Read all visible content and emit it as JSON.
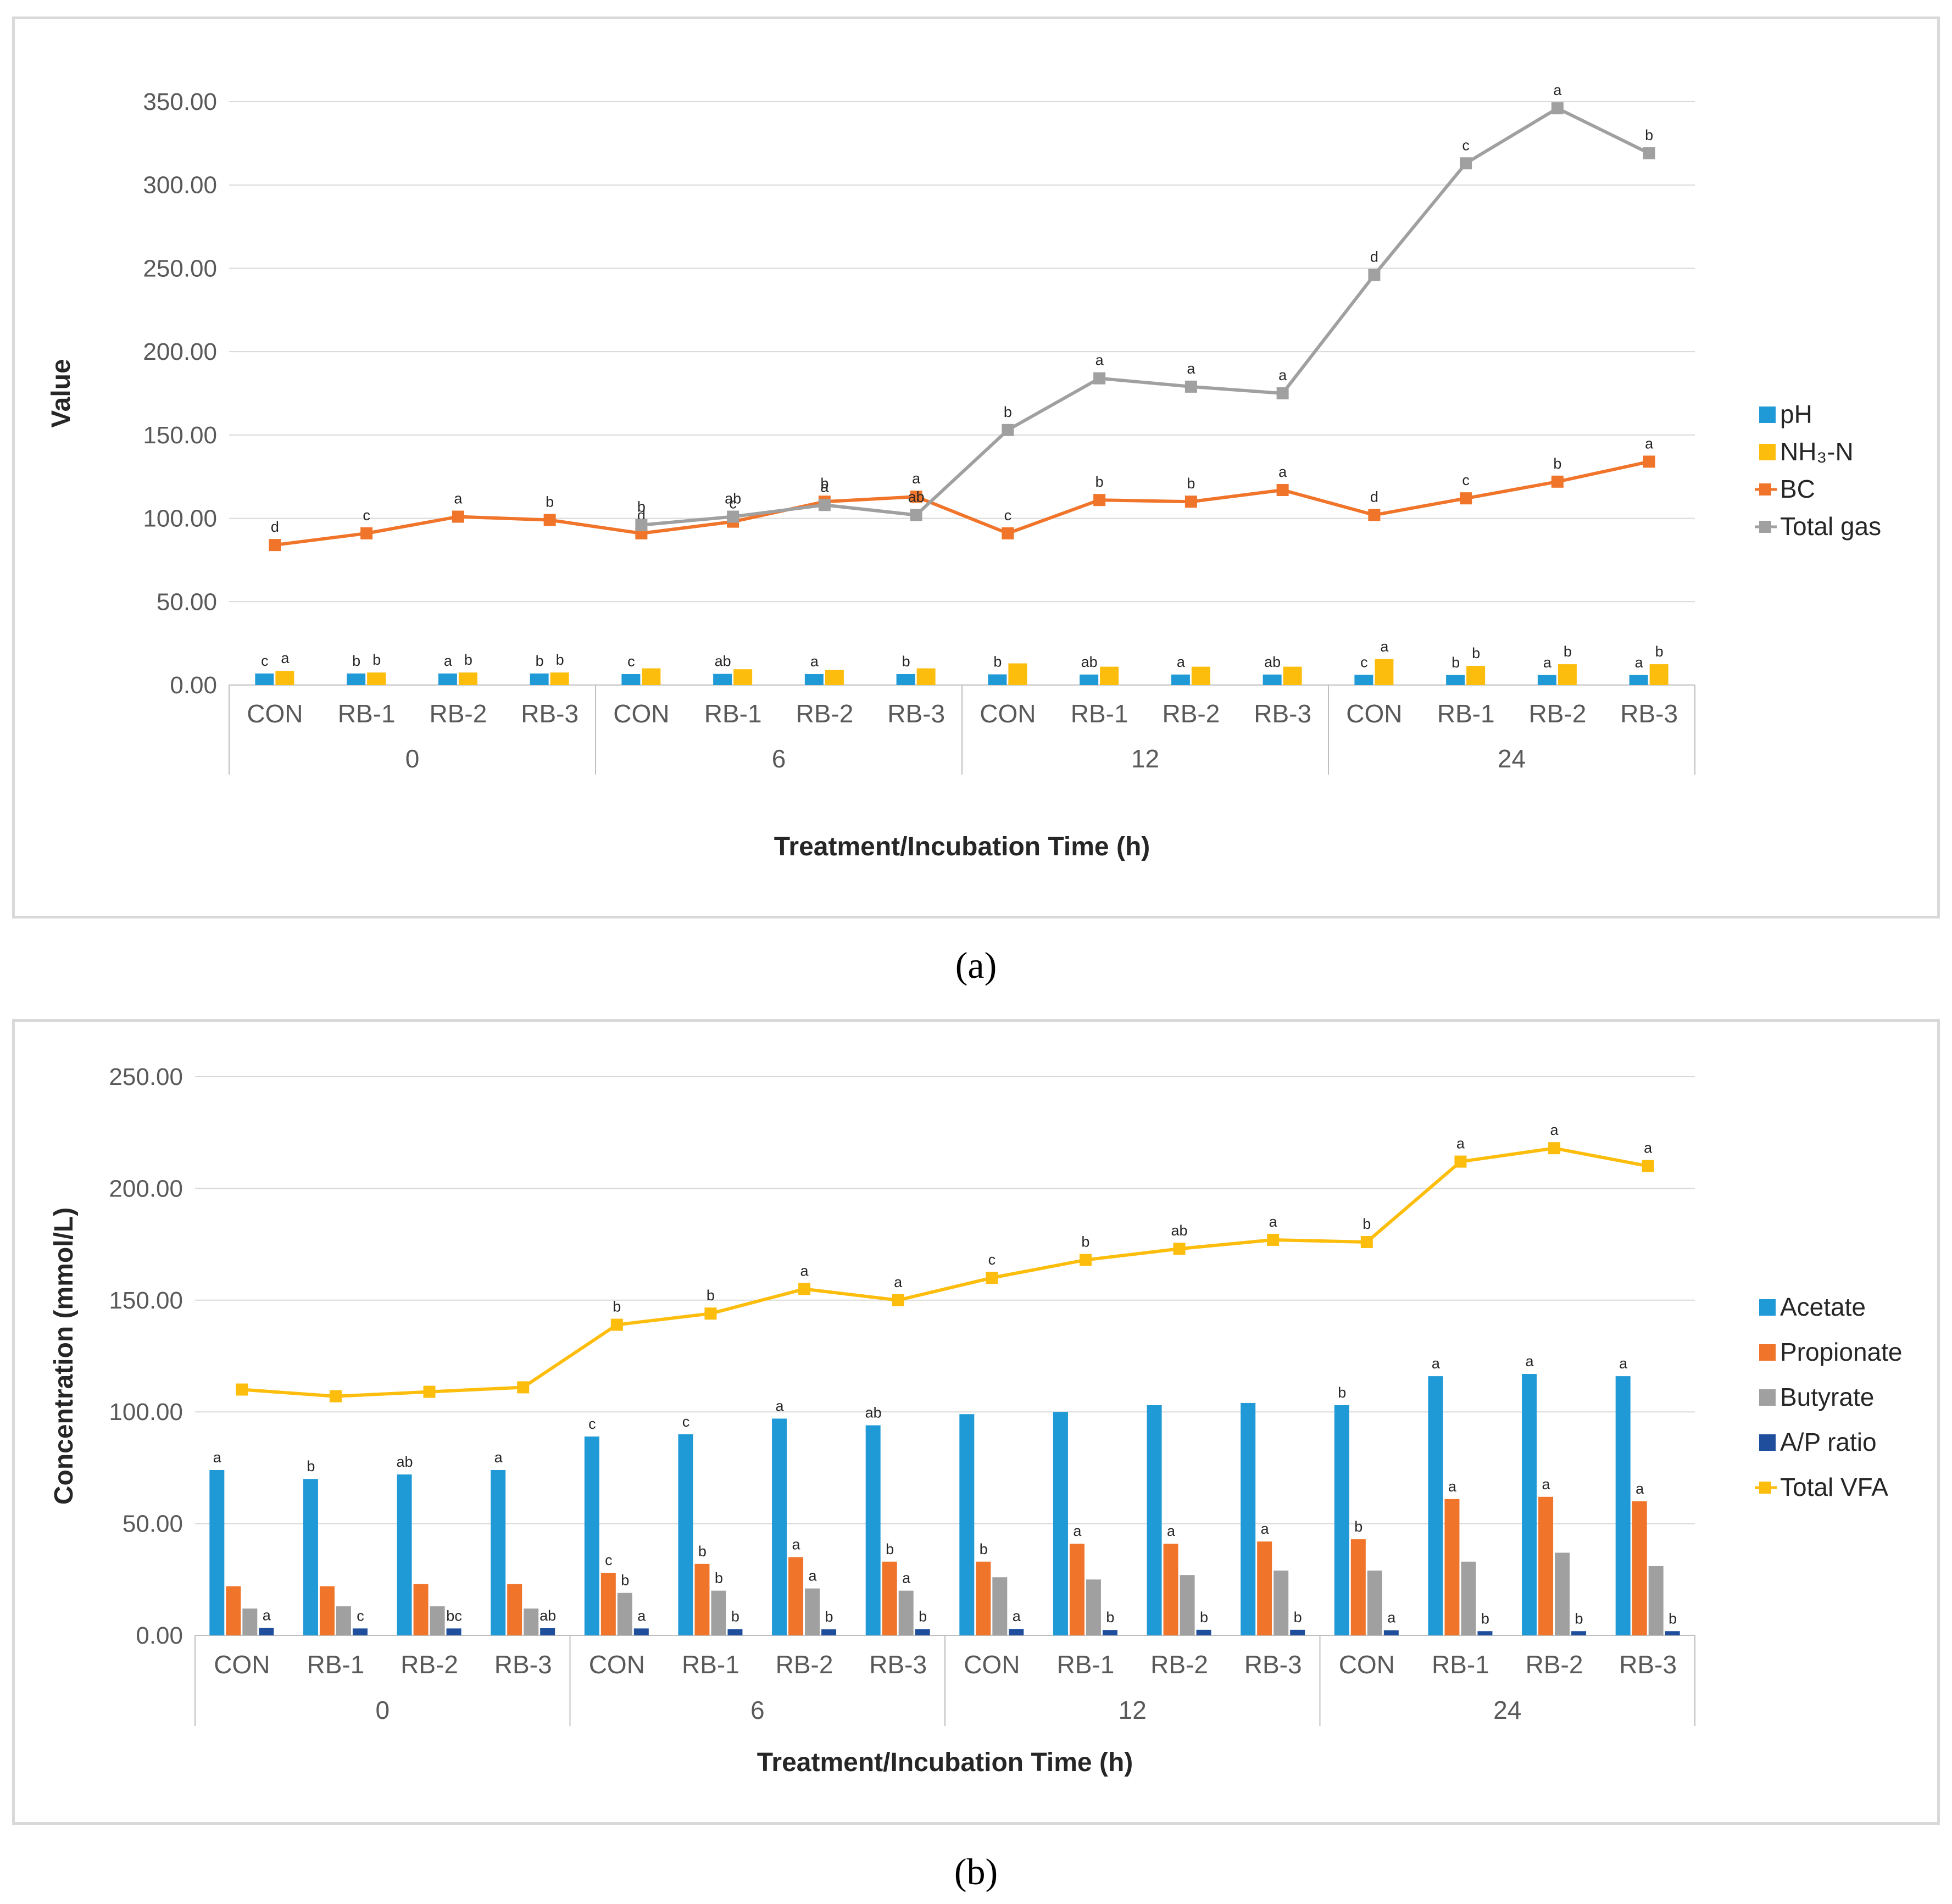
{
  "chart_data": [
    {
      "panel": "a",
      "type": "bar+line",
      "caption": "(a)",
      "xlabel": "Treatment/Incubation Time (h)",
      "ylabel": "Value",
      "ylim": [
        0,
        350
      ],
      "yticks": [
        "0.00",
        "50.00",
        "100.00",
        "150.00",
        "200.00",
        "250.00",
        "300.00",
        "350.00"
      ],
      "groups": [
        "0",
        "6",
        "12",
        "24"
      ],
      "categories": [
        "CON",
        "RB-1",
        "RB-2",
        "RB-3",
        "CON",
        "RB-1",
        "RB-2",
        "RB-3",
        "CON",
        "RB-1",
        "RB-2",
        "RB-3",
        "CON",
        "RB-1",
        "RB-2",
        "RB-3"
      ],
      "legend": [
        "pH",
        "NH₃-N",
        "BC",
        "Total gas"
      ],
      "legend_position": "right",
      "bar_series": [
        {
          "name": "pH",
          "color": "#1f9ad6",
          "values": [
            6.9,
            6.9,
            6.9,
            6.9,
            6.6,
            6.7,
            6.6,
            6.6,
            6.4,
            6.3,
            6.3,
            6.3,
            6.1,
            6.0,
            6.0,
            6.0
          ],
          "letters": [
            "c",
            "b",
            "a",
            "b",
            "c",
            "ab",
            "a",
            "b",
            "b",
            "ab",
            "a",
            "ab",
            "c",
            "b",
            "a",
            "a"
          ]
        },
        {
          "name": "NH₃-N",
          "color": "#fdbd0d",
          "values": [
            8.5,
            7.5,
            7.5,
            7.5,
            10.0,
            9.5,
            9.0,
            10.0,
            13.0,
            11.0,
            11.0,
            11.0,
            15.5,
            11.5,
            12.5,
            12.5
          ],
          "letters": [
            "a",
            "b",
            "b",
            "b",
            "",
            "",
            "",
            "",
            "",
            "",
            "",
            "",
            "a",
            "b",
            "b",
            "b"
          ]
        }
      ],
      "line_series": [
        {
          "name": "BC",
          "color": "#f0742a",
          "values": [
            84,
            91,
            101,
            99,
            91,
            98,
            110,
            113,
            91,
            111,
            110,
            117,
            102,
            112,
            122,
            134
          ],
          "letters": [
            "d",
            "c",
            "a",
            "b",
            "d",
            "c",
            "b",
            "a",
            "c",
            "b",
            "b",
            "a",
            "d",
            "c",
            "b",
            "a"
          ]
        },
        {
          "name": "Total gas",
          "color": "#a0a0a0",
          "values": [
            null,
            null,
            null,
            null,
            96,
            101,
            108,
            102,
            153,
            184,
            179,
            175,
            246,
            313,
            346,
            319
          ],
          "letters": [
            "",
            "",
            "",
            "",
            "b",
            "ab",
            "a",
            "ab",
            "b",
            "a",
            "a",
            "a",
            "d",
            "c",
            "a",
            "b"
          ]
        }
      ]
    },
    {
      "panel": "b",
      "type": "bar+line",
      "caption": "(b)",
      "xlabel": "Treatment/Incubation Time (h)",
      "ylabel": "Concentration (mmol/L)",
      "ylim": [
        0,
        250
      ],
      "yticks": [
        "0.00",
        "50.00",
        "100.00",
        "150.00",
        "200.00",
        "250.00"
      ],
      "groups": [
        "0",
        "6",
        "12",
        "24"
      ],
      "categories": [
        "CON",
        "RB-1",
        "RB-2",
        "RB-3",
        "CON",
        "RB-1",
        "RB-2",
        "RB-3",
        "CON",
        "RB-1",
        "RB-2",
        "RB-3",
        "CON",
        "RB-1",
        "RB-2",
        "RB-3"
      ],
      "legend": [
        "Acetate",
        "Propionate",
        "Butyrate",
        "A/P ratio",
        "Total VFA"
      ],
      "legend_position": "right",
      "bar_series": [
        {
          "name": "Acetate",
          "color": "#1f9ad6",
          "values": [
            74,
            70,
            72,
            74,
            89,
            90,
            97,
            94,
            99,
            100,
            103,
            104,
            103,
            116,
            117,
            116
          ],
          "letters": [
            "a",
            "b",
            "ab",
            "a",
            "c",
            "c",
            "a",
            "ab",
            "",
            "",
            "",
            "",
            "b",
            "a",
            "a",
            "a"
          ]
        },
        {
          "name": "Propionate",
          "color": "#f0742a",
          "values": [
            22,
            22,
            23,
            23,
            28,
            32,
            35,
            33,
            33,
            41,
            41,
            42,
            43,
            61,
            62,
            60
          ],
          "letters": [
            "",
            "",
            "",
            "",
            "c",
            "b",
            "a",
            "b",
            "b",
            "a",
            "a",
            "a",
            "b",
            "a",
            "a",
            "a"
          ]
        },
        {
          "name": "Butyrate",
          "color": "#a0a0a0",
          "values": [
            12,
            13,
            13,
            12,
            19,
            20,
            21,
            20,
            26,
            25,
            27,
            29,
            29,
            33,
            37,
            31
          ],
          "letters": [
            "",
            "",
            "",
            "",
            "b",
            "b",
            "a",
            "a",
            "",
            "",
            "",
            "",
            "",
            "",
            "",
            ""
          ]
        },
        {
          "name": "A/P ratio",
          "color": "#1f4e9c",
          "values": [
            3.3,
            3.1,
            3.1,
            3.2,
            3.1,
            2.8,
            2.7,
            2.8,
            2.9,
            2.4,
            2.5,
            2.5,
            2.3,
            1.9,
            1.9,
            1.9
          ],
          "letters": [
            "a",
            "c",
            "bc",
            "ab",
            "a",
            "b",
            "b",
            "b",
            "a",
            "b",
            "b",
            "b",
            "a",
            "b",
            "b",
            "b"
          ]
        }
      ],
      "line_series": [
        {
          "name": "Total VFA",
          "color": "#fdbd0d",
          "values": [
            110,
            107,
            109,
            111,
            139,
            144,
            155,
            150,
            160,
            168,
            173,
            177,
            176,
            212,
            218,
            210
          ],
          "letters": [
            "",
            "",
            "",
            "",
            "b",
            "b",
            "a",
            "a",
            "c",
            "b",
            "ab",
            "a",
            "b",
            "a",
            "a",
            "a"
          ]
        }
      ]
    }
  ]
}
